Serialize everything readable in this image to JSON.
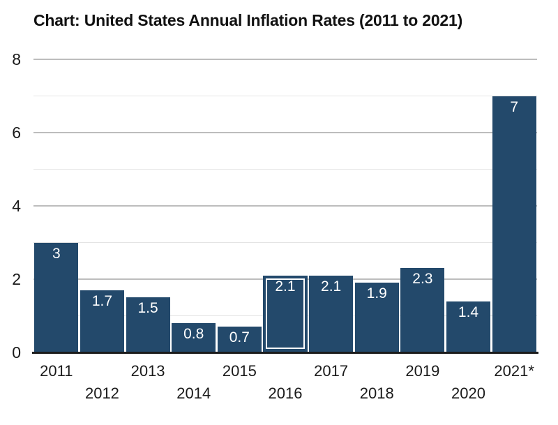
{
  "chart_data": {
    "type": "bar",
    "title": "Chart: United States Annual Inflation Rates (2011 to 2021)",
    "categories": [
      "2011",
      "2012",
      "2013",
      "2014",
      "2015",
      "2016",
      "2017",
      "2018",
      "2019",
      "2020",
      "2021*"
    ],
    "values": [
      3,
      1.7,
      1.5,
      0.8,
      0.7,
      2.1,
      2.1,
      1.9,
      2.3,
      1.4,
      7
    ],
    "value_labels": [
      "3",
      "1.7",
      "1.5",
      "0.8",
      "0.7",
      "2.1",
      "2.1",
      "1.9",
      "2.3",
      "1.4",
      "7"
    ],
    "xlabel": "",
    "ylabel": "",
    "ylim": [
      0,
      8
    ],
    "ytick_labels": [
      "0",
      "2",
      "4",
      "6",
      "8"
    ],
    "yticks": [
      0,
      2,
      4,
      6,
      8
    ],
    "gridline_values": [
      1,
      2,
      3,
      4,
      5,
      6,
      7,
      8
    ],
    "grid": true,
    "legend": false,
    "x_labels_staggered": true,
    "highlight": {
      "index": 5,
      "category": "2016",
      "style": "white inset outline"
    },
    "colors": {
      "bar": "#23496b",
      "bar_label_text": "#ffffff",
      "major_gridline": "#bdbdbd",
      "minor_gridline": "#e4e4e4",
      "axis_line": "#1c1c1c",
      "tick_text": "#1a1a1a",
      "title_text": "#111111",
      "highlight_border": "#ffffff",
      "background": "#ffffff"
    }
  }
}
